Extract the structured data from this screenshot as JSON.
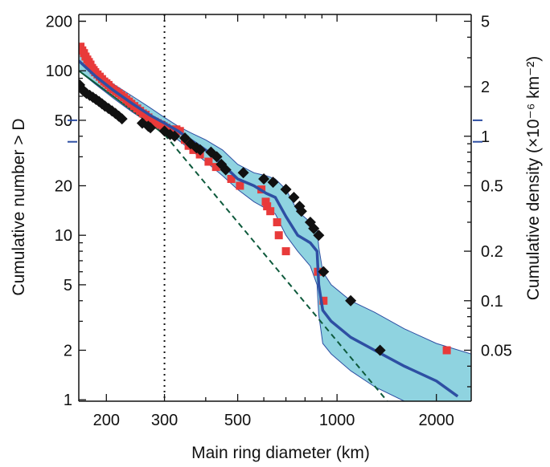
{
  "chart_data": {
    "type": "scatter",
    "title": "",
    "xlabel": "Main ring diameter (km)",
    "ylabel": "Cumulative number > D",
    "ylabel_right": "Cumulative density (×10⁻⁶ km⁻²)",
    "x_scale": "log",
    "y_scale": "log",
    "xlim": [
      165,
      2550
    ],
    "ylim": [
      0.98,
      220
    ],
    "x_ticks": [
      200,
      300,
      500,
      1000,
      2000
    ],
    "y_ticks": [
      1,
      2,
      5,
      10,
      20,
      50,
      100,
      200
    ],
    "right_ticks": [
      {
        "label": "5",
        "y": 200
      },
      {
        "label": "2",
        "y": 80
      },
      {
        "label": "1",
        "y": 40
      },
      {
        "label": "0.5",
        "y": 20
      },
      {
        "label": "0.2",
        "y": 8
      },
      {
        "label": "0.1",
        "y": 4
      },
      {
        "label": "0.05",
        "y": 2
      }
    ],
    "right_marks_y": [
      50,
      37
    ],
    "reference_x": 300,
    "colors": {
      "red_squares": "#e83a3a",
      "black_diamonds": "#111111",
      "median_line": "#2e4fa3",
      "band_fill": "#8fd3e0",
      "band_edge": "#2e4fa3",
      "reference_line": "#0e5a3c",
      "right_marks": "#2e4fa3"
    },
    "series": [
      {
        "style": "red-square",
        "points": [
          [
            167,
            140
          ],
          [
            169,
            133
          ],
          [
            171,
            128
          ],
          [
            173,
            122
          ],
          [
            175,
            117
          ],
          [
            177,
            113
          ],
          [
            179,
            109
          ],
          [
            181,
            104
          ],
          [
            183,
            101
          ],
          [
            185,
            98
          ],
          [
            188,
            95
          ],
          [
            191,
            92
          ],
          [
            194,
            89
          ],
          [
            197,
            86
          ],
          [
            200,
            84
          ],
          [
            203,
            82
          ],
          [
            206,
            79
          ],
          [
            210,
            77
          ],
          [
            214,
            75
          ],
          [
            218,
            73
          ],
          [
            222,
            71
          ],
          [
            226,
            69
          ],
          [
            230,
            67
          ],
          [
            234,
            65
          ],
          [
            238,
            63
          ],
          [
            243,
            61
          ],
          [
            248,
            59
          ],
          [
            253,
            57
          ],
          [
            258,
            55
          ],
          [
            263,
            54
          ],
          [
            268,
            52
          ],
          [
            274,
            50
          ],
          [
            280,
            49
          ],
          [
            286,
            48
          ],
          [
            292,
            47
          ],
          [
            298,
            46
          ],
          [
            304,
            45
          ],
          [
            312,
            44
          ],
          [
            318,
            43
          ],
          [
            326,
            44
          ],
          [
            334,
            43
          ],
          [
            346,
            38
          ],
          [
            355,
            35
          ],
          [
            367,
            33
          ],
          [
            384,
            31
          ],
          [
            408,
            28
          ],
          [
            430,
            26
          ],
          [
            478,
            22
          ],
          [
            508,
            20
          ],
          [
            590,
            19
          ],
          [
            608,
            16
          ],
          [
            614,
            15
          ],
          [
            628,
            14
          ],
          [
            658,
            12
          ],
          [
            666,
            10
          ],
          [
            700,
            8
          ],
          [
            875,
            6
          ],
          [
            910,
            4
          ],
          [
            2150,
            2
          ]
        ]
      },
      {
        "style": "black-diamond",
        "points": [
          [
            166,
            82
          ],
          [
            168,
            78
          ],
          [
            171,
            75
          ],
          [
            174,
            73
          ],
          [
            178,
            71
          ],
          [
            182,
            69
          ],
          [
            186,
            67
          ],
          [
            190,
            65
          ],
          [
            194,
            63
          ],
          [
            198,
            61
          ],
          [
            203,
            59
          ],
          [
            208,
            57
          ],
          [
            213,
            55
          ],
          [
            218,
            53
          ],
          [
            223,
            51
          ],
          [
            257,
            48
          ],
          [
            268,
            46
          ],
          [
            272,
            45
          ],
          [
            300,
            43
          ],
          [
            312,
            41
          ],
          [
            322,
            40
          ],
          [
            346,
            39
          ],
          [
            360,
            36
          ],
          [
            375,
            34
          ],
          [
            385,
            33
          ],
          [
            415,
            32
          ],
          [
            432,
            30
          ],
          [
            446,
            27
          ],
          [
            460,
            25
          ],
          [
            520,
            24
          ],
          [
            600,
            22
          ],
          [
            640,
            21
          ],
          [
            700,
            19
          ],
          [
            740,
            17
          ],
          [
            770,
            15
          ],
          [
            780,
            14
          ],
          [
            830,
            12
          ],
          [
            850,
            11
          ],
          [
            880,
            10
          ],
          [
            910,
            6
          ],
          [
            1100,
            4
          ],
          [
            1350,
            2
          ]
        ]
      }
    ],
    "median": {
      "x": [
        165,
        185,
        210,
        240,
        270,
        300,
        330,
        360,
        400,
        450,
        500,
        560,
        610,
        650,
        700,
        760,
        830,
        870,
        880,
        905,
        960,
        1100,
        1300,
        1600,
        2000,
        2320
      ],
      "y": [
        115,
        93,
        76,
        63,
        54,
        48,
        43,
        38,
        33,
        27,
        22,
        20,
        18,
        17,
        13,
        10,
        9,
        8,
        5,
        3.5,
        3,
        2.4,
        2,
        1.6,
        1.3,
        1.05
      ]
    },
    "band": {
      "x": [
        165,
        185,
        210,
        240,
        270,
        300,
        330,
        360,
        400,
        450,
        500,
        560,
        610,
        650,
        700,
        760,
        830,
        870,
        880,
        905,
        960,
        1100,
        1300,
        1600,
        2000,
        2550
      ],
      "upper": [
        128,
        103,
        83,
        70,
        60,
        52,
        46,
        42,
        38,
        33,
        27,
        24,
        23,
        22,
        19,
        14,
        12,
        11,
        8.5,
        6,
        5,
        4,
        3.4,
        2.7,
        2.2,
        1.9
      ],
      "lower": [
        100,
        83,
        68,
        56,
        48,
        42,
        38,
        33,
        28,
        23,
        19,
        16,
        14.5,
        13.5,
        10,
        8,
        6.5,
        5,
        3.3,
        2.2,
        1.9,
        1.5,
        1.2,
        0.98,
        0.98,
        0.98
      ]
    },
    "reference_line": {
      "solid": [
        [
          165,
          100
        ],
        [
          300,
          41
        ]
      ],
      "dashed": [
        [
          300,
          41
        ],
        [
          1420,
          0.98
        ]
      ]
    }
  }
}
